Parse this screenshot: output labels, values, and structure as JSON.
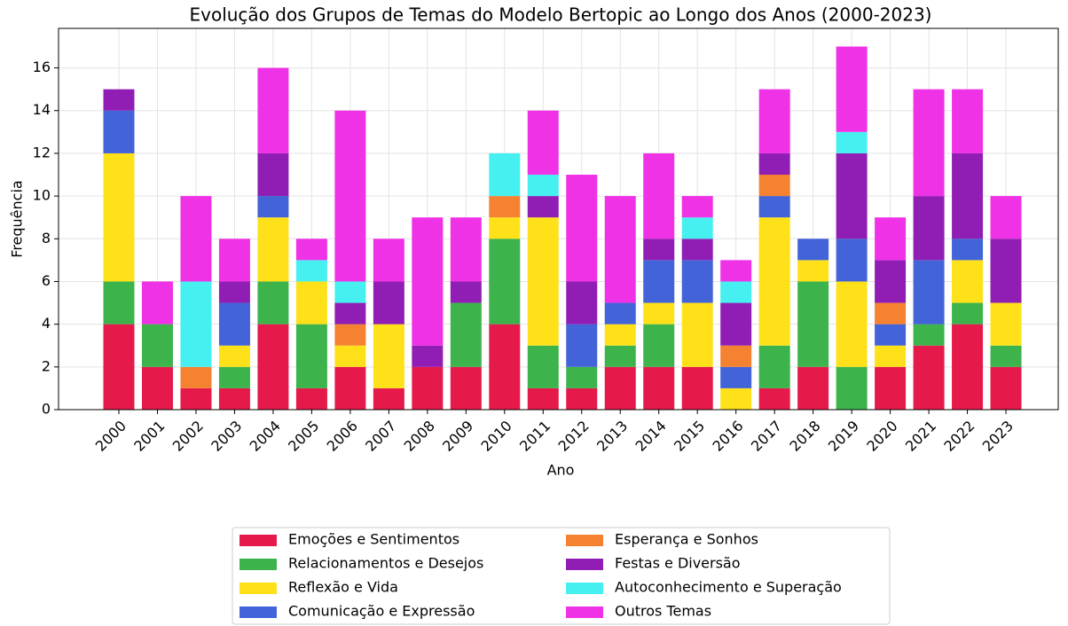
{
  "chart_data": {
    "type": "stacked_bar",
    "title": "Evolução dos Grupos de Temas do Modelo Bertopic ao Longo dos Anos (2000-2023)",
    "x_label": "Ano",
    "y_label": "Frequência",
    "categories": [
      "2000",
      "2001",
      "2002",
      "2003",
      "2004",
      "2005",
      "2006",
      "2007",
      "2008",
      "2009",
      "2010",
      "2011",
      "2012",
      "2013",
      "2014",
      "2015",
      "2016",
      "2017",
      "2018",
      "2019",
      "2020",
      "2021",
      "2022",
      "2023"
    ],
    "series": [
      {
        "name": "Emoções e Sentimentos",
        "color": "#e6194b",
        "values": [
          4,
          2,
          1,
          1,
          4,
          1,
          2,
          1,
          2,
          2,
          4,
          1,
          1,
          2,
          2,
          2,
          0,
          1,
          2,
          0,
          2,
          3,
          4,
          2
        ]
      },
      {
        "name": "Relacionamentos e Desejos",
        "color": "#3cb44b",
        "values": [
          2,
          2,
          0,
          1,
          2,
          3,
          0,
          0,
          0,
          3,
          4,
          2,
          1,
          1,
          2,
          0,
          0,
          2,
          4,
          2,
          0,
          1,
          1,
          1
        ]
      },
      {
        "name": "Reflexão e Vida",
        "color": "#ffe119",
        "values": [
          6,
          0,
          0,
          1,
          3,
          2,
          1,
          3,
          0,
          0,
          1,
          6,
          0,
          1,
          1,
          3,
          1,
          6,
          1,
          4,
          1,
          0,
          2,
          2
        ]
      },
      {
        "name": "Comunicação e Expressão",
        "color": "#4363d8",
        "values": [
          2,
          0,
          0,
          2,
          1,
          0,
          0,
          0,
          0,
          0,
          0,
          0,
          2,
          1,
          2,
          2,
          1,
          1,
          1,
          2,
          1,
          3,
          1,
          0
        ]
      },
      {
        "name": "Esperança e Sonhos",
        "color": "#f58231",
        "values": [
          0,
          0,
          1,
          0,
          0,
          0,
          1,
          0,
          0,
          0,
          1,
          0,
          0,
          0,
          0,
          0,
          1,
          1,
          0,
          0,
          1,
          0,
          0,
          0
        ]
      },
      {
        "name": "Festas e Diversão",
        "color": "#911eb4",
        "values": [
          1,
          0,
          0,
          1,
          2,
          0,
          1,
          2,
          1,
          1,
          0,
          1,
          2,
          0,
          1,
          1,
          2,
          1,
          0,
          4,
          2,
          3,
          4,
          3
        ]
      },
      {
        "name": "Autoconhecimento e Superação",
        "color": "#46f0f0",
        "values": [
          0,
          0,
          4,
          0,
          0,
          1,
          1,
          0,
          0,
          0,
          2,
          1,
          0,
          0,
          0,
          1,
          1,
          0,
          0,
          1,
          0,
          0,
          0,
          0
        ]
      },
      {
        "name": "Outros Temas",
        "color": "#f032e6",
        "values": [
          0,
          2,
          4,
          2,
          4,
          1,
          8,
          2,
          6,
          3,
          0,
          3,
          5,
          5,
          4,
          1,
          1,
          3,
          0,
          4,
          2,
          5,
          3,
          2
        ]
      }
    ],
    "ylim": [
      0,
      17.85
    ],
    "yticks": [
      0,
      2,
      4,
      6,
      8,
      10,
      12,
      14,
      16
    ],
    "grid": true
  }
}
